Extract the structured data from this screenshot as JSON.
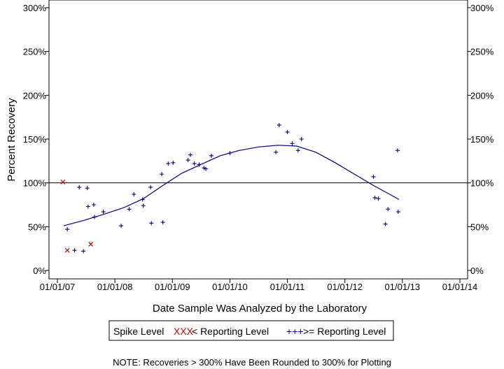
{
  "chart_data": {
    "type": "scatter",
    "xlabel": "Date Sample Was Analyzed by the Laboratory",
    "ylabel": "Percent Recovery",
    "x_range": [
      "2007-01-01",
      "2014-01-01"
    ],
    "x_ticks": [
      "01/01/07",
      "01/01/08",
      "01/01/09",
      "01/01/10",
      "01/01/11",
      "01/01/12",
      "01/01/13",
      "01/01/14"
    ],
    "ylim": [
      0,
      300
    ],
    "y_ticks": [
      0,
      50,
      100,
      150,
      200,
      250,
      300
    ],
    "y_tick_labels": [
      "0%",
      "50%",
      "100%",
      "150%",
      "200%",
      "250%",
      "300%"
    ],
    "right_axis_mirrored": true,
    "grid": false,
    "reference_line": 100,
    "legend": {
      "title": "Spike Level",
      "placement": "bottom",
      "entries": [
        {
          "symbol": "XXX",
          "label": "< Reporting Level",
          "color": "#cc0000"
        },
        {
          "symbol": "+++",
          "label": ">= Reporting Level",
          "color": "#00008b"
        }
      ]
    },
    "note": "NOTE: Recoveries > 300% Have Been Rounded to 300% for Plotting",
    "series": [
      {
        "marker": "x",
        "color": "#cc0000",
        "points": [
          [
            "2007-02-05",
            101
          ],
          [
            "2007-03-05",
            23
          ],
          [
            "2007-08-01",
            30
          ]
        ]
      },
      {
        "marker": "+",
        "color": "#00008b",
        "points": [
          [
            "2007-03-05",
            47
          ],
          [
            "2007-04-20",
            23
          ],
          [
            "2007-05-20",
            95
          ],
          [
            "2007-06-15",
            22
          ],
          [
            "2007-07-10",
            94
          ],
          [
            "2007-07-15",
            73
          ],
          [
            "2007-08-20",
            75
          ],
          [
            "2007-08-25",
            61
          ],
          [
            "2007-10-20",
            67
          ],
          [
            "2008-02-10",
            51
          ],
          [
            "2008-04-01",
            70
          ],
          [
            "2008-05-01",
            87
          ],
          [
            "2008-06-25",
            81
          ],
          [
            "2008-06-30",
            74
          ],
          [
            "2008-08-15",
            95
          ],
          [
            "2008-08-20",
            54
          ],
          [
            "2008-10-25",
            110
          ],
          [
            "2008-11-01",
            55
          ],
          [
            "2008-12-05",
            122
          ],
          [
            "2009-01-05",
            123
          ],
          [
            "2009-04-10",
            126
          ],
          [
            "2009-04-25",
            132
          ],
          [
            "2009-05-20",
            122
          ],
          [
            "2009-06-20",
            121
          ],
          [
            "2009-07-20",
            117
          ],
          [
            "2009-08-01",
            116
          ],
          [
            "2009-09-05",
            131
          ],
          [
            "2010-01-01",
            134
          ],
          [
            "2010-10-20",
            135
          ],
          [
            "2010-11-10",
            166
          ],
          [
            "2011-01-01",
            158
          ],
          [
            "2011-02-01",
            145
          ],
          [
            "2011-03-10",
            137
          ],
          [
            "2011-04-01",
            150
          ],
          [
            "2012-07-01",
            107
          ],
          [
            "2012-07-10",
            83
          ],
          [
            "2012-08-01",
            82
          ],
          [
            "2012-09-15",
            53
          ],
          [
            "2012-10-01",
            70
          ],
          [
            "2012-12-01",
            137
          ],
          [
            "2012-12-05",
            67
          ]
        ]
      }
    ],
    "trend_line": {
      "color": "#00008b",
      "points": [
        [
          "2007-02-10",
          51
        ],
        [
          "2007-06-15",
          57
        ],
        [
          "2007-10-20",
          64
        ],
        [
          "2008-03-01",
          72
        ],
        [
          "2008-07-01",
          82
        ],
        [
          "2008-11-01",
          97
        ],
        [
          "2009-03-01",
          111
        ],
        [
          "2009-07-01",
          121
        ],
        [
          "2009-11-01",
          131
        ],
        [
          "2010-03-01",
          137
        ],
        [
          "2010-07-01",
          141
        ],
        [
          "2010-11-01",
          143
        ],
        [
          "2011-03-01",
          142
        ],
        [
          "2011-07-01",
          135
        ],
        [
          "2011-11-01",
          123
        ],
        [
          "2012-03-01",
          110
        ],
        [
          "2012-07-01",
          97
        ],
        [
          "2012-11-01",
          85
        ],
        [
          "2012-12-10",
          81
        ]
      ]
    }
  }
}
